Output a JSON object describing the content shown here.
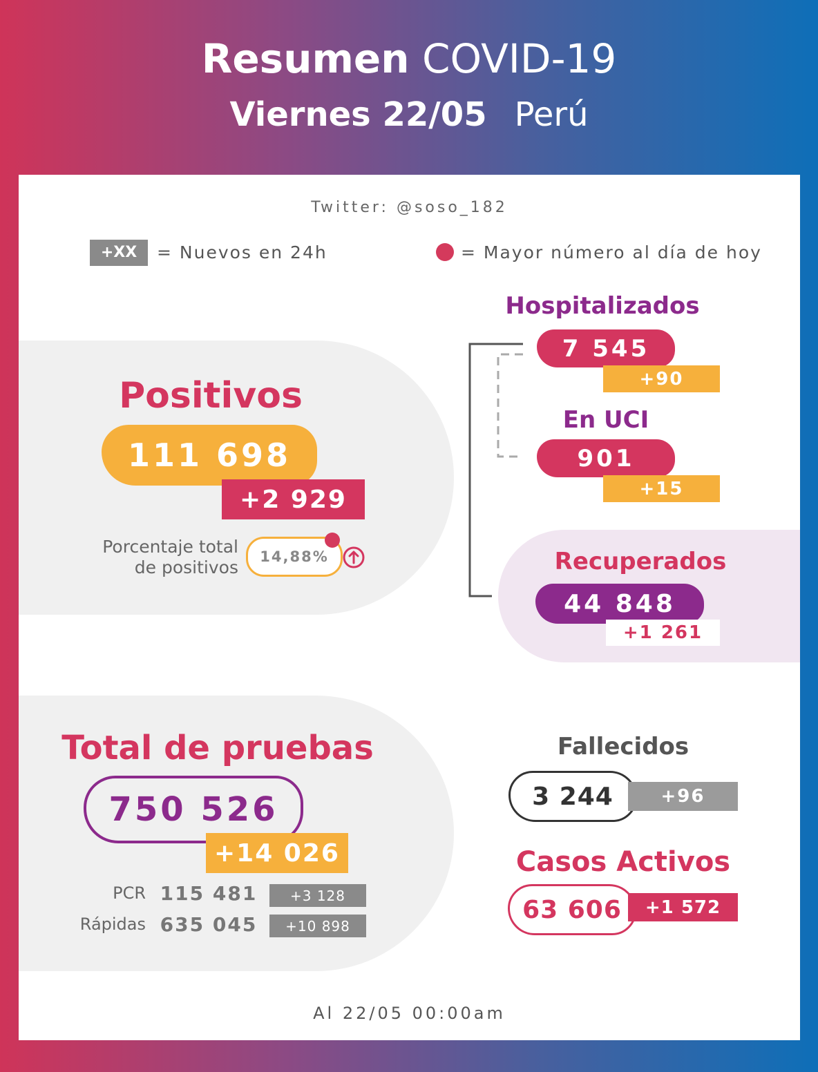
{
  "header": {
    "title_bold": "Resumen",
    "title_light": "COVID-19",
    "date_bold": "Viernes 22/05",
    "country": "Perú"
  },
  "twitter": "Twitter: @soso_182",
  "legend": {
    "new_badge": "+XX",
    "new_text": "= Nuevos en 24h",
    "dot_text": "= Mayor número al día de hoy"
  },
  "positivos": {
    "title": "Positivos",
    "total": "111 698",
    "new": "+2 929",
    "pct_label_line1": "Porcentaje total",
    "pct_label_line2": "de positivos",
    "pct_value": "14,88%"
  },
  "hospitalizados": {
    "title": "Hospitalizados",
    "total": "7 545",
    "new": "+90"
  },
  "uci": {
    "title": "En UCI",
    "total": "901",
    "new": "+15"
  },
  "recuperados": {
    "title": "Recuperados",
    "total": "44 848",
    "new": "+1 261"
  },
  "pruebas": {
    "title": "Total de pruebas",
    "total": "750 526",
    "new": "+14 026",
    "rows": [
      {
        "label": "PCR",
        "value": "115 481",
        "new": "+3 128"
      },
      {
        "label": "Rápidas",
        "value": "635 045",
        "new": "+10 898"
      }
    ]
  },
  "fallecidos": {
    "title": "Fallecidos",
    "total": "3 244",
    "new": "+96"
  },
  "activos": {
    "title": "Casos Activos",
    "total": "63 606",
    "new": "+1 572"
  },
  "footer": "Al 22/05 00:00am",
  "colors": {
    "red": "#d4365f",
    "orange": "#f6b03c",
    "purple": "#8c2a8c",
    "grey": "#8a8a8a"
  }
}
